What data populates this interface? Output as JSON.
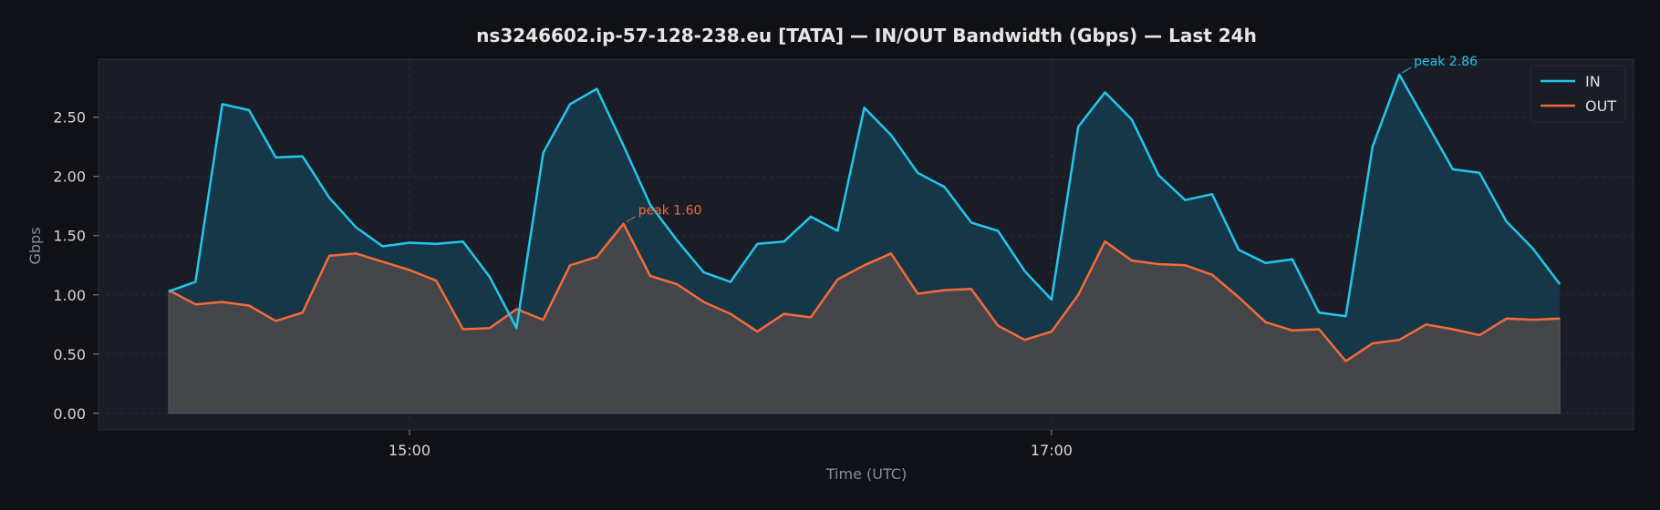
{
  "chart_data": {
    "type": "area",
    "title": "ns3246602.ip-57-128-238.eu [TATA] — IN/OUT Bandwidth (Gbps) — Last 24h",
    "xlabel": "Time (UTC)",
    "ylabel": "Gbps",
    "x_start": "14:15",
    "x_step_minutes": 5,
    "x_ticks": [
      "15:00",
      "17:00"
    ],
    "ylim": [
      -0.14,
      2.99
    ],
    "y_ticks": [
      "0.00",
      "0.50",
      "1.00",
      "1.50",
      "2.00",
      "2.50"
    ],
    "y_tick_values": [
      0,
      0.5,
      1,
      1.5,
      2,
      2.5
    ],
    "grid": true,
    "legend_position": "top-right",
    "series": [
      {
        "name": "IN",
        "color": "#22c7ee",
        "values": [
          1.03,
          1.11,
          2.61,
          2.56,
          2.16,
          2.17,
          1.82,
          1.57,
          1.41,
          1.44,
          1.43,
          1.45,
          1.15,
          0.72,
          2.2,
          2.61,
          2.74,
          2.26,
          1.76,
          1.46,
          1.19,
          1.11,
          1.43,
          1.45,
          1.66,
          1.54,
          2.58,
          2.35,
          2.03,
          1.91,
          1.61,
          1.54,
          1.2,
          0.96,
          2.42,
          2.71,
          2.48,
          2.01,
          1.8,
          1.85,
          1.38,
          1.27,
          1.3,
          0.85,
          0.82,
          2.25,
          2.86,
          2.46,
          2.06,
          2.03,
          1.62,
          1.39,
          1.09
        ]
      },
      {
        "name": "OUT",
        "color": "#f46b3a",
        "values": [
          1.04,
          0.92,
          0.94,
          0.91,
          0.78,
          0.85,
          1.33,
          1.35,
          1.28,
          1.21,
          1.12,
          0.71,
          0.72,
          0.88,
          0.79,
          1.25,
          1.32,
          1.6,
          1.16,
          1.09,
          0.94,
          0.84,
          0.69,
          0.84,
          0.81,
          1.13,
          1.25,
          1.35,
          1.01,
          1.04,
          1.05,
          0.74,
          0.62,
          0.69,
          1.0,
          1.45,
          1.29,
          1.26,
          1.25,
          1.17,
          0.98,
          0.77,
          0.7,
          0.71,
          0.44,
          0.59,
          0.62,
          0.75,
          0.71,
          0.66,
          0.8,
          0.79,
          0.8
        ]
      }
    ],
    "annotations": [
      {
        "text": "peak 1.60",
        "series": "OUT",
        "index": 17,
        "color": "#f46b3a"
      },
      {
        "text": "peak 2.86",
        "series": "IN",
        "index": 46,
        "color": "#22c7ee"
      }
    ]
  }
}
